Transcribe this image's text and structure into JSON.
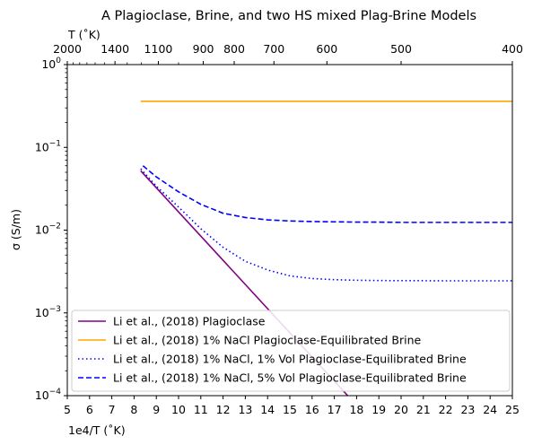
{
  "chart_data": {
    "type": "line",
    "title": "A Plagioclase, Brine, and two HS mixed Plag-Brine Models",
    "xlabel": "1e4/T ($^\\circ$K)",
    "xlabel_display": "1e4/T (˚K)",
    "ylabel": "σ (S/m)",
    "top_xlabel": "T (˚K)",
    "xlim": [
      5,
      25
    ],
    "ylim": [
      0.0001,
      1
    ],
    "yscale": "log",
    "x_ticks": [
      5,
      6,
      7,
      8,
      9,
      10,
      11,
      12,
      13,
      14,
      15,
      16,
      17,
      18,
      19,
      20,
      21,
      22,
      23,
      24,
      25
    ],
    "y_ticks": [
      {
        "value": 0.0001,
        "mant": "10",
        "exp": "−4"
      },
      {
        "value": 0.001,
        "mant": "10",
        "exp": "−3"
      },
      {
        "value": 0.01,
        "mant": "10",
        "exp": "−2"
      },
      {
        "value": 0.1,
        "mant": "10",
        "exp": "−1"
      },
      {
        "value": 1,
        "mant": "10",
        "exp": "0"
      }
    ],
    "top_ticks": [
      {
        "label": "2000",
        "T": 2000
      },
      {
        "label": "1400",
        "T": 1400
      },
      {
        "label": "1100",
        "T": 1100
      },
      {
        "label": "900",
        "T": 900
      },
      {
        "label": "800",
        "T": 800
      },
      {
        "label": "700",
        "T": 700
      },
      {
        "label": "600",
        "T": 600
      },
      {
        "label": "500",
        "T": 500
      },
      {
        "label": "400",
        "T": 400
      }
    ],
    "top_minor_T": [
      1900,
      1800,
      1700,
      1600,
      1500,
      1300,
      1200,
      1000
    ],
    "grid": false,
    "legend_position": "lower-left",
    "series": [
      {
        "name": "Li et al., (2018) Plagioclase",
        "color": "#800080",
        "dash": "solid",
        "x": [
          8.3,
          17.6
        ],
        "y": [
          0.052,
          0.0001
        ]
      },
      {
        "name": "Li et al., (2018) 1% NaCl Plagioclase-Equilibrated Brine",
        "color": "#FFA500",
        "dash": "solid",
        "x": [
          8.3,
          25
        ],
        "y": [
          0.36,
          0.36
        ]
      },
      {
        "name": "Li et al., (2018) 1% NaCl, 1% Vol Plagioclase-Equilibrated Brine",
        "color": "#0000FF",
        "dash": "dotted",
        "x": [
          8.3,
          9,
          10,
          11,
          12,
          13,
          14,
          15,
          16,
          17,
          18,
          19,
          20,
          21,
          22,
          23,
          24,
          25
        ],
        "y": [
          0.055,
          0.034,
          0.019,
          0.0104,
          0.0062,
          0.0042,
          0.0033,
          0.0028,
          0.0026,
          0.00252,
          0.00248,
          0.00246,
          0.00245,
          0.00245,
          0.00244,
          0.00244,
          0.00244,
          0.00244
        ]
      },
      {
        "name": "Li et al., (2018) 1% NaCl, 5% Vol Plagioclase-Equilibrated Brine",
        "color": "#0000FF",
        "dash": "dashed",
        "x": [
          8.4,
          9,
          10,
          11,
          12,
          13,
          14,
          15,
          16,
          17,
          18,
          19,
          20,
          21,
          22,
          23,
          24,
          25
        ],
        "y": [
          0.06,
          0.044,
          0.029,
          0.0205,
          0.016,
          0.0142,
          0.0133,
          0.0129,
          0.0127,
          0.0126,
          0.0125,
          0.0125,
          0.0124,
          0.0124,
          0.0124,
          0.0124,
          0.0124,
          0.0124
        ]
      }
    ]
  }
}
